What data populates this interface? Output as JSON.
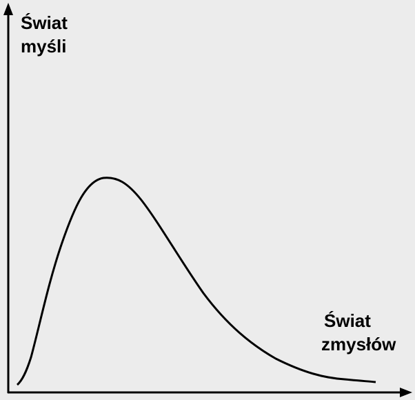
{
  "y_axis_label": {
    "lines": [
      "Świat",
      "myśli"
    ]
  },
  "x_axis_label": {
    "lines": [
      "Świat",
      "zmysłów"
    ]
  }
}
